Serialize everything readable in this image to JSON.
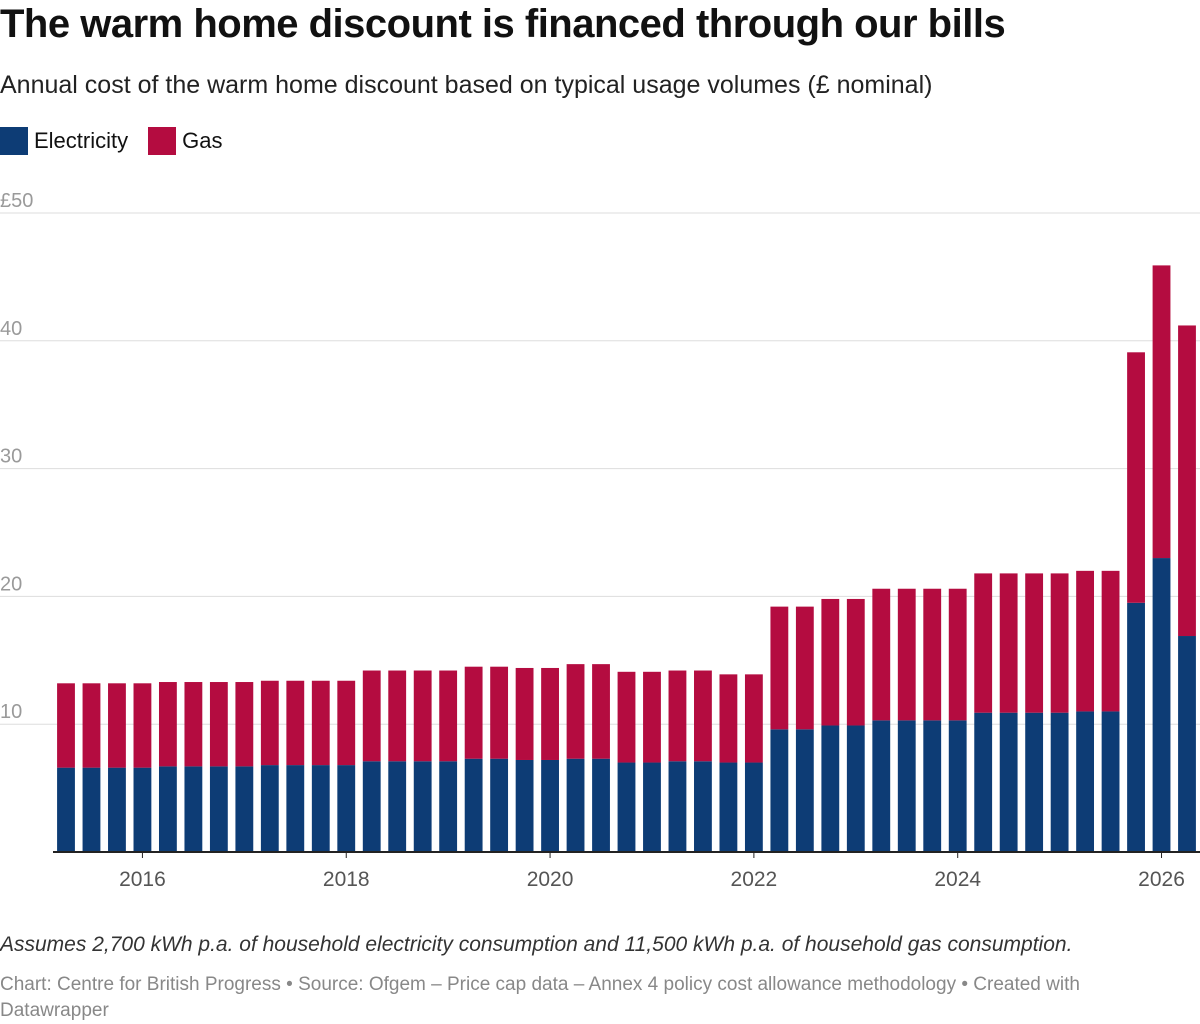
{
  "title": "The warm home discount is financed through our bills",
  "subtitle": "Annual cost of the warm home discount based on typical usage volumes (£ nominal)",
  "colors": {
    "electricity": "#0d3c75",
    "gas": "#b40c40",
    "grid": "#dddddd",
    "tick_text": "#9a9a9a",
    "axis": "#222222"
  },
  "legend": [
    {
      "label": "Electricity",
      "color": "#0d3c75"
    },
    {
      "label": "Gas",
      "color": "#b40c40"
    }
  ],
  "note": "Assumes 2,700 kWh p.a. of household electricity consumption and 11,500 kWh p.a. of household gas consumption.",
  "source": "Chart: Centre for British Progress • Source: Ofgem – Price cap data – Annex 4 policy cost allowance methodology • Created with Datawrapper",
  "chart_data": {
    "type": "bar",
    "stacked": true,
    "x": [
      2015.25,
      2015.5,
      2015.75,
      2016.0,
      2016.25,
      2016.5,
      2016.75,
      2017.0,
      2017.25,
      2017.5,
      2017.75,
      2018.0,
      2018.25,
      2018.5,
      2018.75,
      2019.0,
      2019.25,
      2019.5,
      2019.75,
      2020.0,
      2020.25,
      2020.5,
      2020.75,
      2021.0,
      2021.25,
      2021.5,
      2021.75,
      2022.0,
      2022.25,
      2022.5,
      2022.75,
      2023.0,
      2023.25,
      2023.5,
      2023.75,
      2024.0,
      2024.25,
      2024.5,
      2024.75,
      2025.0,
      2025.25,
      2025.5,
      2025.75,
      2026.0,
      2026.25
    ],
    "series": [
      {
        "name": "Electricity",
        "values": [
          6.6,
          6.6,
          6.6,
          6.6,
          6.7,
          6.7,
          6.7,
          6.7,
          6.8,
          6.8,
          6.8,
          6.8,
          7.1,
          7.1,
          7.1,
          7.1,
          7.3,
          7.3,
          7.2,
          7.2,
          7.3,
          7.3,
          7.0,
          7.0,
          7.1,
          7.1,
          7.0,
          7.0,
          9.6,
          9.6,
          9.9,
          9.9,
          10.3,
          10.3,
          10.3,
          10.3,
          10.9,
          10.9,
          10.9,
          10.9,
          11.0,
          11.0,
          19.5,
          23.0,
          16.9
        ]
      },
      {
        "name": "Gas",
        "values": [
          6.6,
          6.6,
          6.6,
          6.6,
          6.6,
          6.6,
          6.6,
          6.6,
          6.6,
          6.6,
          6.6,
          6.6,
          7.1,
          7.1,
          7.1,
          7.1,
          7.2,
          7.2,
          7.2,
          7.2,
          7.4,
          7.4,
          7.1,
          7.1,
          7.1,
          7.1,
          6.9,
          6.9,
          9.6,
          9.6,
          9.9,
          9.9,
          10.3,
          10.3,
          10.3,
          10.3,
          10.9,
          10.9,
          10.9,
          10.9,
          11.0,
          11.0,
          19.6,
          22.9,
          24.3
        ]
      }
    ],
    "x_ticks": [
      2016,
      2018,
      2020,
      2022,
      2024,
      2026
    ],
    "x_tick_labels": [
      "2016",
      "2018",
      "2020",
      "2022",
      "2024",
      "2026"
    ],
    "y_ticks": [
      10,
      20,
      30,
      40,
      50
    ],
    "y_tick_labels": [
      "10",
      "20",
      "30",
      "40",
      "£50"
    ],
    "ylim": [
      0,
      50
    ],
    "xlabel": "",
    "ylabel": "",
    "grid": true,
    "legend_position": "top-left"
  }
}
